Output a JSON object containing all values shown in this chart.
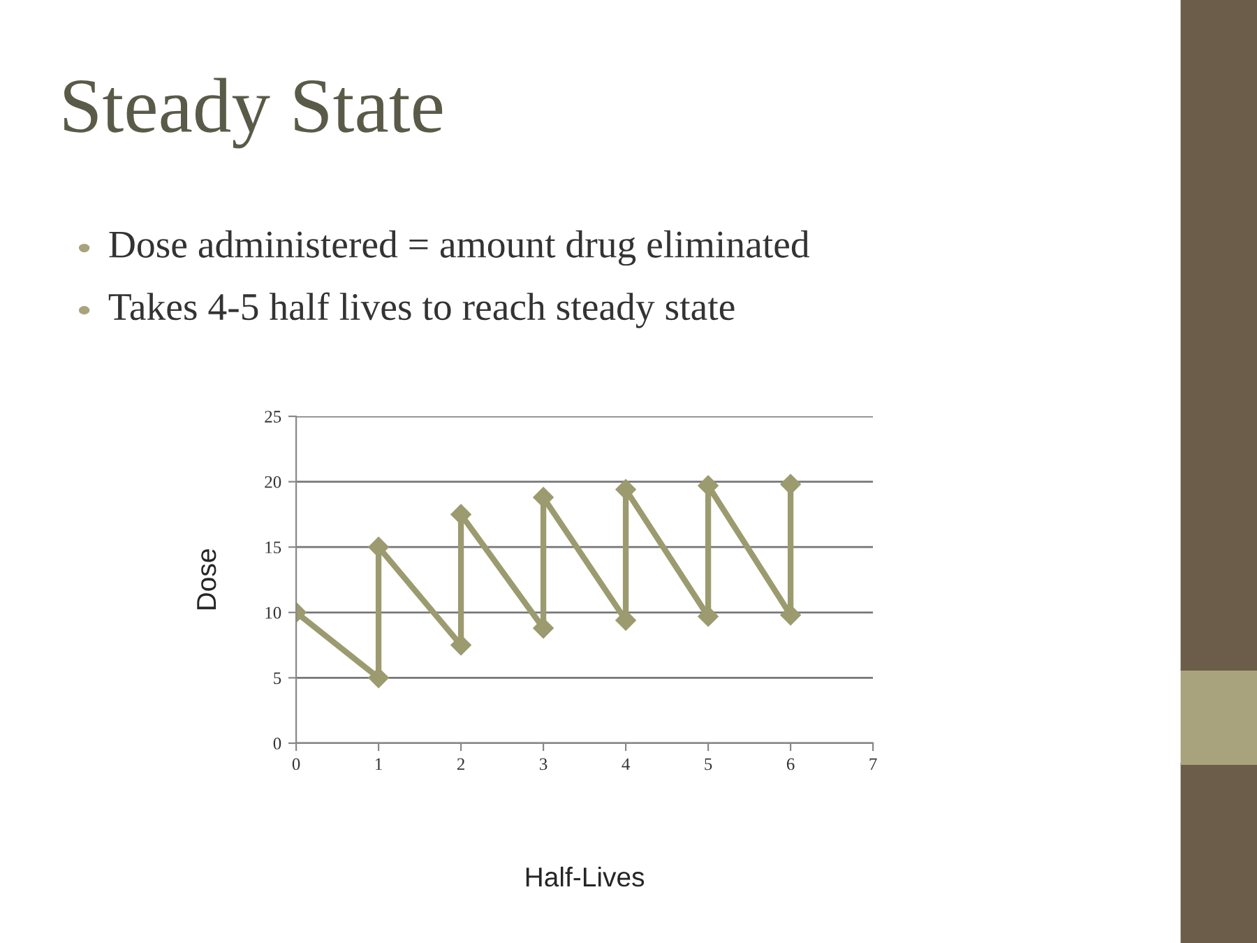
{
  "chart_data": {
    "type": "line",
    "title": "Steady State",
    "annotations": [
      "Dose administered = amount drug eliminated",
      "Takes 4-5 half lives to reach steady state"
    ],
    "xlabel": "Half-Lives",
    "ylabel": "Dose",
    "series": [
      {
        "color": "#9c9b70",
        "x": [
          0,
          1,
          1,
          2,
          2,
          3,
          3,
          4,
          4,
          5,
          5,
          6,
          6
        ],
        "values": [
          10,
          5,
          15,
          7.5,
          17.5,
          8.8,
          18.8,
          9.4,
          19.4,
          9.7,
          19.7,
          9.8,
          19.8
        ]
      }
    ],
    "xlim": [
      0,
      7
    ],
    "xticks": [
      0,
      1,
      2,
      3,
      4,
      5,
      6,
      7
    ],
    "ylim": [
      0,
      25
    ],
    "yticks": [
      0,
      5,
      10,
      15,
      20,
      25
    ],
    "grid": "y",
    "marker": "diamond",
    "line_style": "solid",
    "legend": false
  }
}
